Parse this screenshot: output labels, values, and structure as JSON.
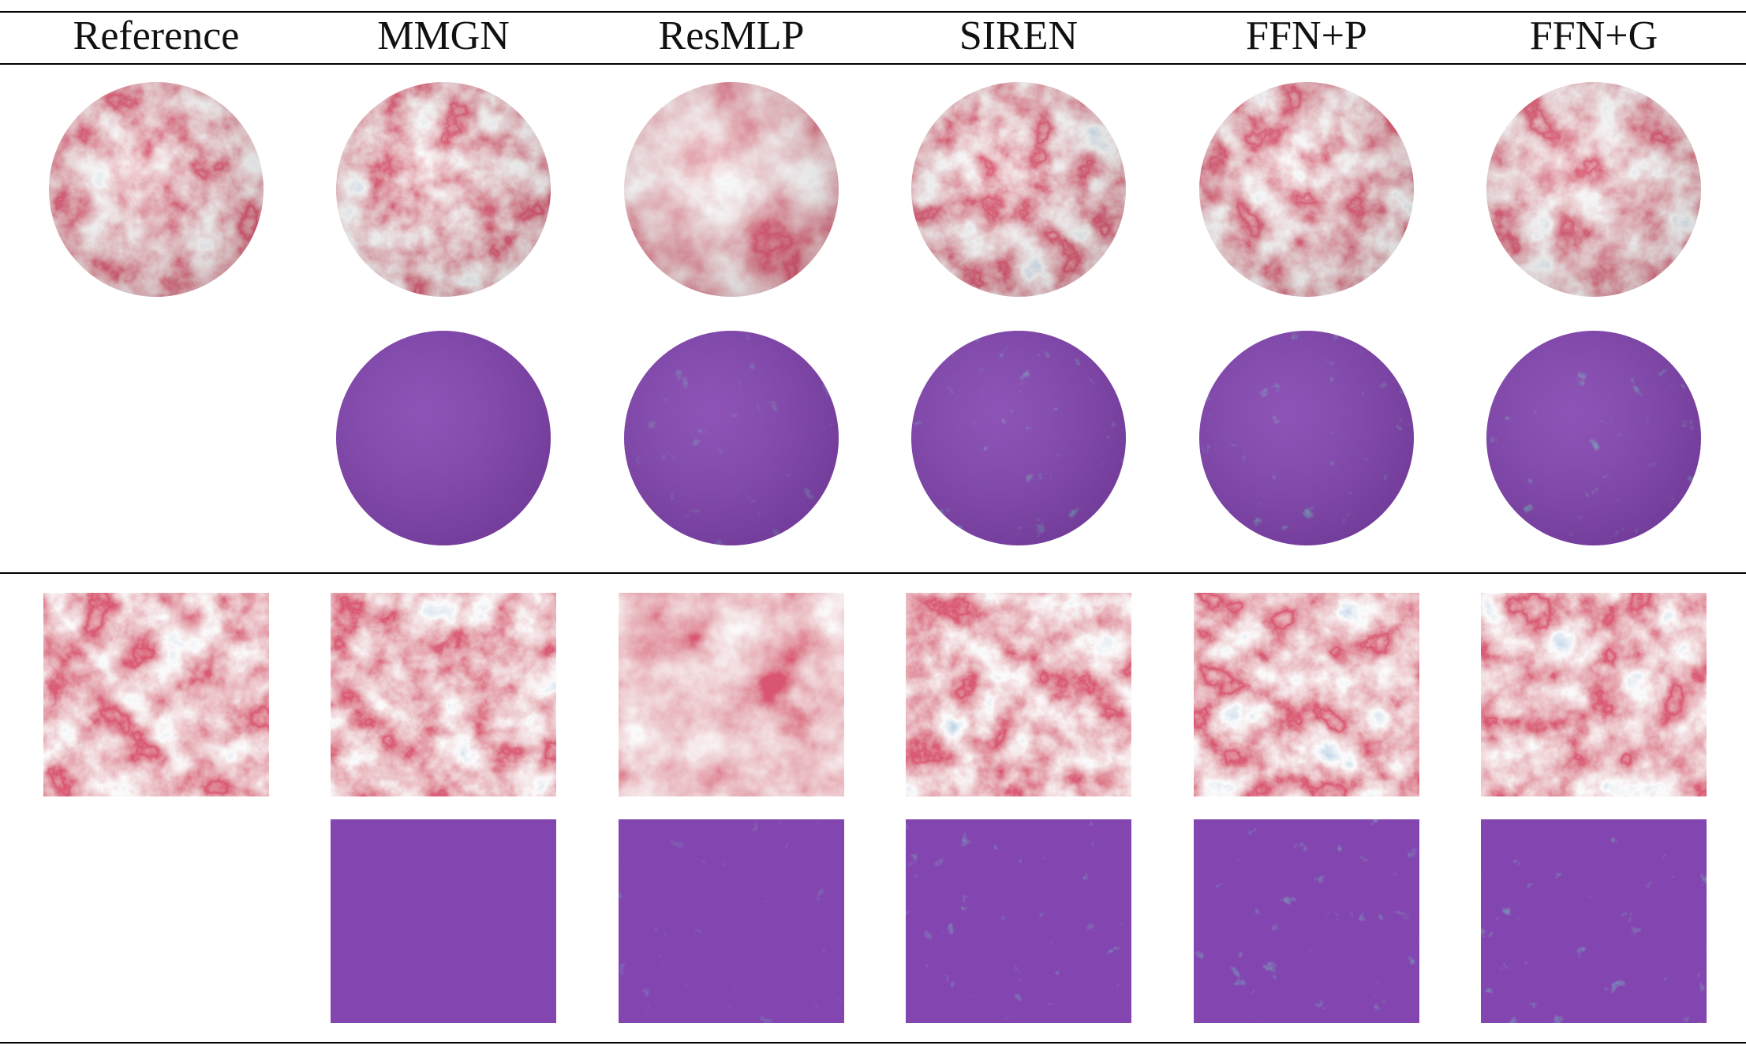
{
  "columns": [
    {
      "key": "reference",
      "label": "Reference"
    },
    {
      "key": "mmgn",
      "label": "MMGN"
    },
    {
      "key": "resmlp",
      "label": "ResMLP"
    },
    {
      "key": "siren",
      "label": "SIREN"
    },
    {
      "key": "ffn_p",
      "label": "FFN+P"
    },
    {
      "key": "ffn_g",
      "label": "FFN+G"
    }
  ],
  "rows": [
    {
      "name": "sphere-prediction",
      "shape": "circle",
      "palette": "diverging",
      "columns": [
        "reference",
        "mmgn",
        "resmlp",
        "siren",
        "ffn_p",
        "ffn_g"
      ]
    },
    {
      "name": "sphere-error",
      "shape": "circle",
      "palette": "error",
      "columns": [
        "mmgn",
        "resmlp",
        "siren",
        "ffn_p",
        "ffn_g"
      ]
    },
    {
      "name": "patch-prediction",
      "shape": "square",
      "palette": "diverging",
      "columns": [
        "reference",
        "mmgn",
        "resmlp",
        "siren",
        "ffn_p",
        "ffn_g"
      ]
    },
    {
      "name": "patch-error",
      "shape": "square",
      "palette": "error",
      "columns": [
        "mmgn",
        "resmlp",
        "siren",
        "ffn_p",
        "ffn_g"
      ]
    }
  ],
  "colors": {
    "diverging_red": "#b2182b",
    "diverging_white": "#f7f7f7",
    "diverging_blue": "#2166ac",
    "error_low": "#3b0f70",
    "error_mid": "#21908c",
    "error_high": "#fde725"
  }
}
